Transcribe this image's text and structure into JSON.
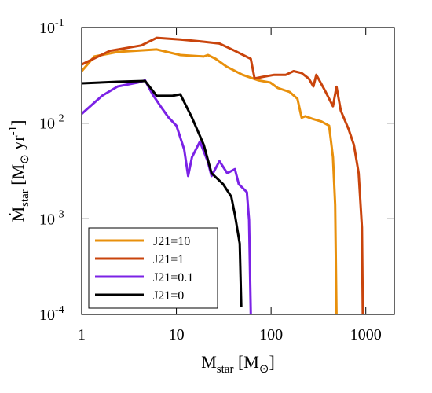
{
  "chart_data": {
    "type": "line",
    "xlabel": [
      {
        "text": "M"
      },
      {
        "text": "star",
        "shift": "sub"
      },
      {
        "text": " [M"
      },
      {
        "text": "⊙",
        "shift": "sub"
      },
      {
        "text": "]"
      }
    ],
    "ylabel": [
      {
        "text": "Ṁ"
      },
      {
        "text": "star",
        "shift": "sub"
      },
      {
        "text": " [M"
      },
      {
        "text": "⊙",
        "shift": "sub"
      },
      {
        "text": " yr"
      },
      {
        "text": "-1",
        "shift": "sup"
      },
      {
        "text": "]"
      }
    ],
    "xscale": "log",
    "yscale": "log",
    "xlim": [
      1,
      2000
    ],
    "ylim": [
      0.0001,
      0.1
    ],
    "xticks": [
      1,
      10,
      100,
      1000
    ],
    "yticks": [
      {
        "value": 0.0001,
        "label": "10",
        "exponent": "-4"
      },
      {
        "value": 0.001,
        "label": "10",
        "exponent": "-3"
      },
      {
        "value": 0.01,
        "label": "10",
        "exponent": "-2"
      },
      {
        "value": 0.1,
        "label": "10",
        "exponent": "-1"
      }
    ],
    "legend": "lower left",
    "series": [
      {
        "name": "J21=10",
        "color": "#e8900c",
        "x": [
          1,
          1.36,
          2.4,
          6.2,
          11,
          19.5,
          21.5,
          26,
          34,
          50,
          74,
          98,
          118,
          157,
          190,
          210,
          230,
          280,
          340,
          410,
          450,
          475,
          490
        ],
        "values": [
          0.035,
          0.0497,
          0.0556,
          0.059,
          0.0516,
          0.0497,
          0.0516,
          0.047,
          0.039,
          0.032,
          0.028,
          0.0266,
          0.0233,
          0.0212,
          0.018,
          0.0114,
          0.0118,
          0.011,
          0.0104,
          0.0094,
          0.0044,
          0.0014,
          0.0001
        ]
      },
      {
        "name": "J21=1",
        "color": "#c9440c",
        "x": [
          1,
          1.98,
          4.25,
          6.2,
          11,
          19.5,
          28.5,
          41.5,
          61,
          67,
          81,
          108,
          143,
          173,
          210,
          250,
          280,
          300,
          370,
          450,
          490,
          545,
          660,
          750,
          840,
          910,
          930
        ],
        "values": [
          0.041,
          0.057,
          0.065,
          0.078,
          0.075,
          0.071,
          0.068,
          0.057,
          0.047,
          0.0293,
          0.0304,
          0.032,
          0.032,
          0.035,
          0.0334,
          0.0293,
          0.0242,
          0.032,
          0.022,
          0.015,
          0.024,
          0.0135,
          0.0086,
          0.0059,
          0.003,
          0.00081,
          0.0001
        ]
      },
      {
        "name": "J21=0.1",
        "color": "#7b22e6",
        "x": [
          1,
          1.64,
          2.4,
          3.9,
          4.67,
          5.6,
          6.8,
          8.3,
          10,
          12.1,
          13.3,
          14.6,
          17.7,
          21.4,
          23.5,
          28.5,
          34.4,
          41.5,
          45.6,
          55.5,
          58.5,
          61
        ],
        "values": [
          0.0125,
          0.0193,
          0.0242,
          0.0266,
          0.028,
          0.02,
          0.015,
          0.0114,
          0.0094,
          0.0053,
          0.0028,
          0.0044,
          0.0064,
          0.004,
          0.0028,
          0.004,
          0.003,
          0.0033,
          0.0023,
          0.0019,
          0.00097,
          0.0001
        ]
      },
      {
        "name": "J21=0",
        "color": "#000000",
        "x": [
          1,
          2.4,
          4.67,
          6.2,
          9.1,
          11,
          14.6,
          19.5,
          23.5,
          31.2,
          38,
          41.5,
          46.6,
          48.5
        ],
        "values": [
          0.0261,
          0.0271,
          0.0276,
          0.0193,
          0.0193,
          0.02,
          0.0114,
          0.0059,
          0.003,
          0.0023,
          0.0017,
          0.0011,
          0.00055,
          0.00012
        ]
      }
    ]
  }
}
